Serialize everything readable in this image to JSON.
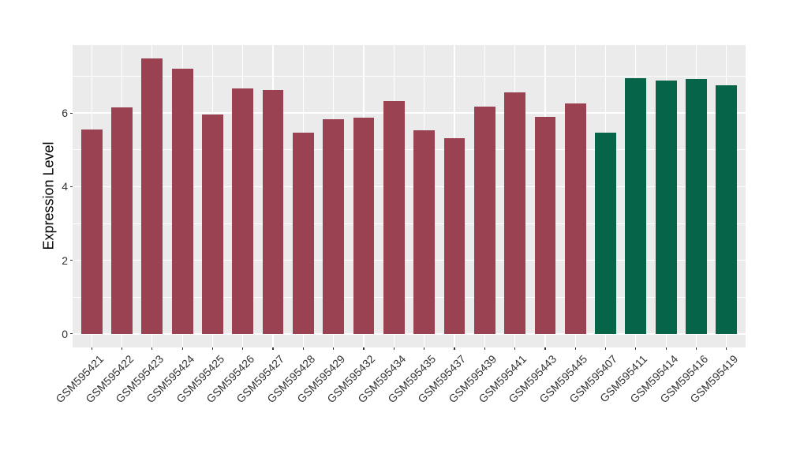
{
  "chart_data": {
    "type": "bar",
    "title": "",
    "xlabel": "",
    "ylabel": "Expression Level",
    "yticks": [
      0,
      2,
      4,
      6
    ],
    "minor_gridlines": [
      1,
      3,
      5,
      7
    ],
    "ylim": [
      -0.37,
      7.85
    ],
    "grid": "on",
    "legend": "none",
    "panel_background": "#EBEBEB",
    "gridline_color": "#FFFFFF",
    "axis_text_color": "#333333",
    "bar_width_fraction": 0.7,
    "series": [
      {
        "name": "maroon-group",
        "color": "#9A4252",
        "categories": [
          "GSM595421",
          "GSM595422",
          "GSM595423",
          "GSM595424",
          "GSM595425",
          "GSM595426",
          "GSM595427",
          "GSM595428",
          "GSM595429",
          "GSM595432",
          "GSM595434",
          "GSM595435",
          "GSM595437",
          "GSM595439",
          "GSM595441",
          "GSM595443",
          "GSM595445"
        ],
        "values": [
          5.55,
          6.15,
          7.48,
          7.21,
          5.96,
          6.66,
          6.62,
          5.46,
          5.84,
          5.87,
          6.33,
          5.53,
          5.32,
          6.17,
          6.57,
          5.89,
          6.26
        ]
      },
      {
        "name": "green-group",
        "color": "#066548",
        "categories": [
          "GSM595407",
          "GSM595411",
          "GSM595414",
          "GSM595416",
          "GSM595419"
        ],
        "values": [
          5.47,
          6.95,
          6.88,
          6.92,
          6.76
        ]
      }
    ]
  }
}
